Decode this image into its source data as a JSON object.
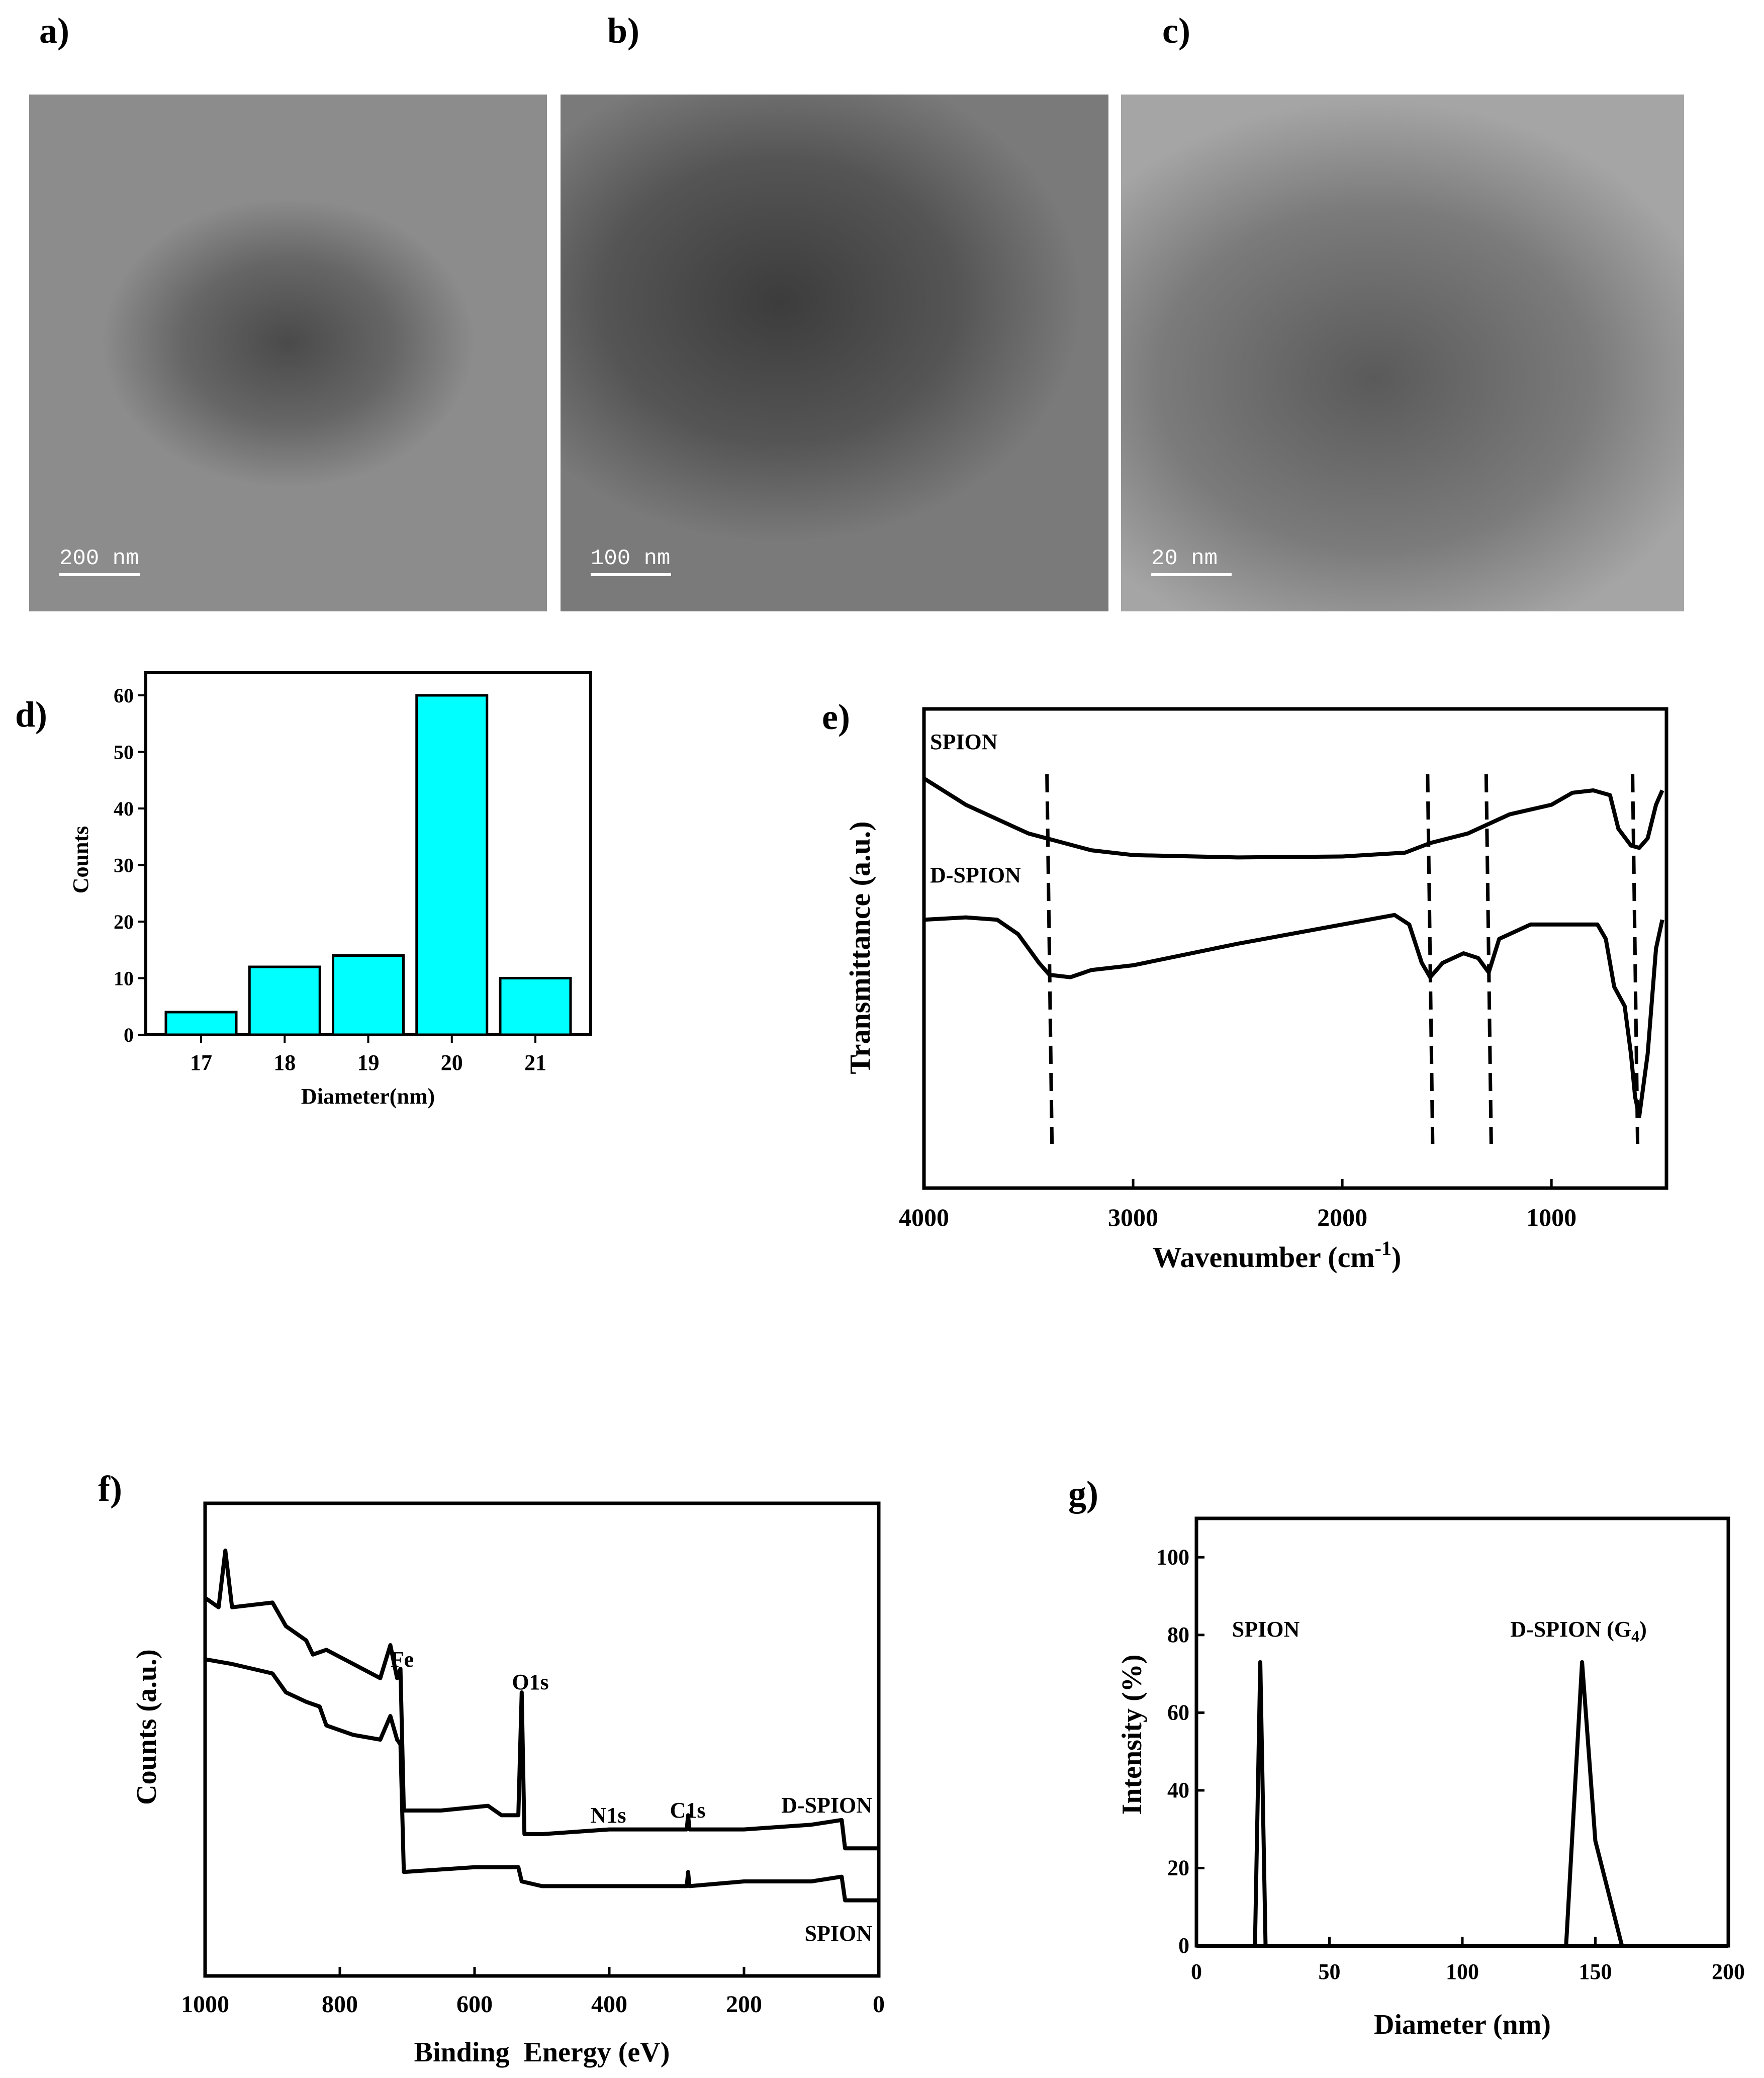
{
  "panels": {
    "a": "a)",
    "b": "b)",
    "c": "c)",
    "d": "d)",
    "e": "e)",
    "f": "f)",
    "g": "g)"
  },
  "tem": {
    "a": {
      "scale": "200 nm",
      "tone": "#8e8e8e"
    },
    "b": {
      "scale": "100 nm",
      "tone": "#7a7a7a"
    },
    "c": {
      "scale": "20 nm",
      "tone": "#9a9a9a"
    }
  },
  "chart_data": [
    {
      "id": "d",
      "type": "bar",
      "categories": [
        "17",
        "18",
        "19",
        "20",
        "21"
      ],
      "values": [
        4,
        12,
        14,
        60,
        10
      ],
      "xlabel": "Diameter(nm)",
      "ylabel": "Counts",
      "ylim": [
        0,
        64
      ],
      "yticks": [
        0,
        10,
        20,
        30,
        40,
        50,
        60
      ],
      "bar_color": "#00ffff"
    },
    {
      "id": "e",
      "type": "line",
      "xlabel": "Wavenumber (cm",
      "xlabel_sup": "-1",
      "xlabel_end": ")",
      "ylabel": "Transmittance (a.u.)",
      "xlim": [
        4000,
        450
      ],
      "xticks": [
        4000,
        3000,
        2000,
        1000
      ],
      "series": [
        {
          "name": "SPION",
          "points": [
            [
              4000,
              0.855
            ],
            [
              3800,
              0.8
            ],
            [
              3500,
              0.74
            ],
            [
              3200,
              0.705
            ],
            [
              3000,
              0.695
            ],
            [
              2500,
              0.69
            ],
            [
              2000,
              0.692
            ],
            [
              1700,
              0.7
            ],
            [
              1580,
              0.72
            ],
            [
              1400,
              0.74
            ],
            [
              1200,
              0.78
            ],
            [
              1000,
              0.8
            ],
            [
              900,
              0.825
            ],
            [
              800,
              0.83
            ],
            [
              720,
              0.82
            ],
            [
              680,
              0.75
            ],
            [
              620,
              0.715
            ],
            [
              580,
              0.71
            ],
            [
              540,
              0.73
            ],
            [
              500,
              0.8
            ],
            [
              470,
              0.83
            ]
          ]
        },
        {
          "name": "D-SPION",
          "points": [
            [
              4000,
              0.56
            ],
            [
              3800,
              0.565
            ],
            [
              3650,
              0.56
            ],
            [
              3550,
              0.53
            ],
            [
              3450,
              0.47
            ],
            [
              3400,
              0.445
            ],
            [
              3300,
              0.44
            ],
            [
              3200,
              0.455
            ],
            [
              3000,
              0.465
            ],
            [
              2500,
              0.51
            ],
            [
              2000,
              0.55
            ],
            [
              1750,
              0.57
            ],
            [
              1680,
              0.55
            ],
            [
              1620,
              0.47
            ],
            [
              1580,
              0.44
            ],
            [
              1520,
              0.47
            ],
            [
              1420,
              0.49
            ],
            [
              1350,
              0.48
            ],
            [
              1300,
              0.45
            ],
            [
              1250,
              0.52
            ],
            [
              1100,
              0.55
            ],
            [
              900,
              0.55
            ],
            [
              780,
              0.55
            ],
            [
              740,
              0.52
            ],
            [
              700,
              0.42
            ],
            [
              650,
              0.38
            ],
            [
              620,
              0.28
            ],
            [
              600,
              0.19
            ],
            [
              580,
              0.15
            ],
            [
              540,
              0.28
            ],
            [
              500,
              0.5
            ],
            [
              470,
              0.56
            ]
          ]
        }
      ],
      "dashed_lines_x": [
        3400,
        1580,
        1300,
        600
      ],
      "annotations": [
        "SPION",
        "D-SPION"
      ]
    },
    {
      "id": "f",
      "type": "line",
      "xlabel": "Binding  Energy (eV)",
      "ylabel": "Counts (a.u.)",
      "xlim": [
        1000,
        0
      ],
      "xticks": [
        1000,
        800,
        600,
        400,
        200,
        0
      ],
      "series": [
        {
          "name": "D-SPION",
          "points": [
            [
              1000,
              0.8
            ],
            [
              980,
              0.78
            ],
            [
              970,
              0.9
            ],
            [
              960,
              0.78
            ],
            [
              900,
              0.79
            ],
            [
              880,
              0.74
            ],
            [
              850,
              0.71
            ],
            [
              840,
              0.68
            ],
            [
              820,
              0.69
            ],
            [
              780,
              0.66
            ],
            [
              740,
              0.63
            ],
            [
              725,
              0.7
            ],
            [
              715,
              0.63
            ],
            [
              710,
              0.65
            ],
            [
              705,
              0.35
            ],
            [
              650,
              0.35
            ],
            [
              580,
              0.36
            ],
            [
              560,
              0.34
            ],
            [
              540,
              0.34
            ],
            [
              535,
              0.34
            ],
            [
              530,
              0.6
            ],
            [
              526,
              0.3
            ],
            [
              500,
              0.3
            ],
            [
              400,
              0.31
            ],
            [
              285,
              0.31
            ],
            [
              283,
              0.34
            ],
            [
              281,
              0.31
            ],
            [
              200,
              0.31
            ],
            [
              100,
              0.32
            ],
            [
              55,
              0.33
            ],
            [
              50,
              0.27
            ],
            [
              0,
              0.27
            ]
          ]
        },
        {
          "name": "SPION",
          "points": [
            [
              1000,
              0.67
            ],
            [
              960,
              0.66
            ],
            [
              900,
              0.64
            ],
            [
              880,
              0.6
            ],
            [
              850,
              0.58
            ],
            [
              830,
              0.57
            ],
            [
              820,
              0.53
            ],
            [
              780,
              0.51
            ],
            [
              740,
              0.5
            ],
            [
              725,
              0.55
            ],
            [
              715,
              0.5
            ],
            [
              710,
              0.49
            ],
            [
              705,
              0.22
            ],
            [
              600,
              0.23
            ],
            [
              560,
              0.23
            ],
            [
              535,
              0.23
            ],
            [
              530,
              0.2
            ],
            [
              500,
              0.19
            ],
            [
              400,
              0.19
            ],
            [
              285,
              0.19
            ],
            [
              283,
              0.22
            ],
            [
              281,
              0.19
            ],
            [
              200,
              0.2
            ],
            [
              100,
              0.2
            ],
            [
              55,
              0.21
            ],
            [
              50,
              0.16
            ],
            [
              0,
              0.16
            ]
          ]
        }
      ],
      "peak_labels": [
        "Fe",
        "O1s",
        "N1s",
        "C1s"
      ],
      "annotations": [
        "D-SPION",
        "SPION"
      ]
    },
    {
      "id": "g",
      "type": "line",
      "xlabel": "Diameter (nm)",
      "ylabel": "Intensity (%)",
      "xlim": [
        0,
        200
      ],
      "ylim": [
        0,
        110
      ],
      "xticks": [
        0,
        50,
        100,
        150,
        200
      ],
      "yticks": [
        0,
        20,
        40,
        60,
        80,
        100
      ],
      "series": [
        {
          "name": "SPION",
          "points": [
            [
              0,
              0
            ],
            [
              22,
              0
            ],
            [
              24,
              73
            ],
            [
              26,
              0
            ],
            [
              200,
              0
            ]
          ]
        },
        {
          "name": "D-SPION (G4)",
          "points": [
            [
              0,
              0
            ],
            [
              139,
              0
            ],
            [
              145,
              73
            ],
            [
              150,
              27
            ],
            [
              160,
              0
            ],
            [
              200,
              0
            ]
          ]
        }
      ],
      "annotations": [
        "SPION",
        "D-SPION (G",
        "4",
        ")"
      ]
    }
  ]
}
